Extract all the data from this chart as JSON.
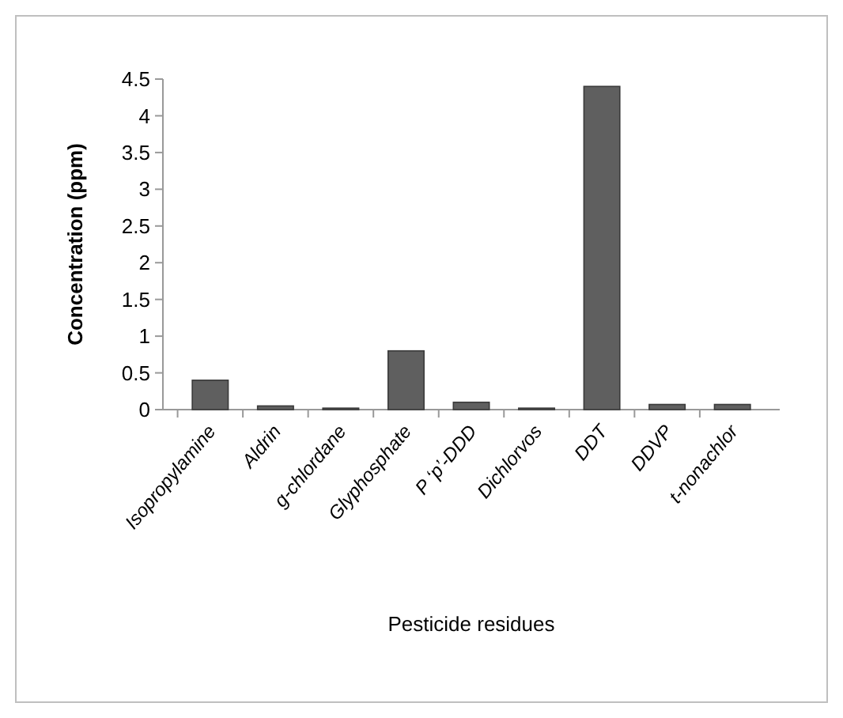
{
  "chart_data": {
    "type": "bar",
    "xlabel": "Pesticide residues",
    "ylabel": "Concentration (ppm)",
    "categories": [
      "Isopropylamine",
      "Aldrin",
      "g-chlordane",
      "Glyphosphate",
      "P ‘p’-DDD",
      "Dichlorvos",
      "DDT",
      "DDVP",
      "t-nonachlor"
    ],
    "values": [
      0.4,
      0.05,
      0.02,
      0.8,
      0.1,
      0.02,
      4.4,
      0.07,
      0.07
    ],
    "color": "#5f5f5f",
    "ylim": [
      0,
      4.5
    ],
    "yticks": [
      0,
      0.5,
      1,
      1.5,
      2,
      2.5,
      3,
      3.5,
      4,
      4.5
    ],
    "grid": false
  }
}
